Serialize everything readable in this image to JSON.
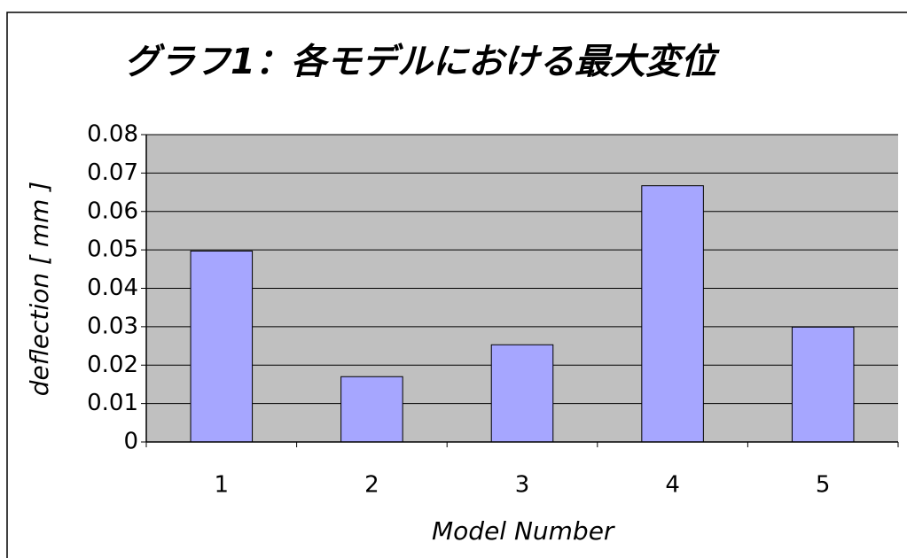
{
  "chart_data": {
    "type": "bar",
    "title": "グラフ1：各モデルにおける最大変位",
    "x_label": "Model Number",
    "y_label": "deflection [ mm ]",
    "categories": [
      "1",
      "2",
      "3",
      "4",
      "5"
    ],
    "values": [
      0.0497,
      0.017,
      0.0253,
      0.0667,
      0.0299
    ],
    "color": "#a6a6ff",
    "ylim": [
      0,
      0.08
    ],
    "yticks": [
      0,
      0.01,
      0.02,
      0.03,
      0.04,
      0.05,
      0.06,
      0.07,
      0.08
    ],
    "grid": true
  }
}
